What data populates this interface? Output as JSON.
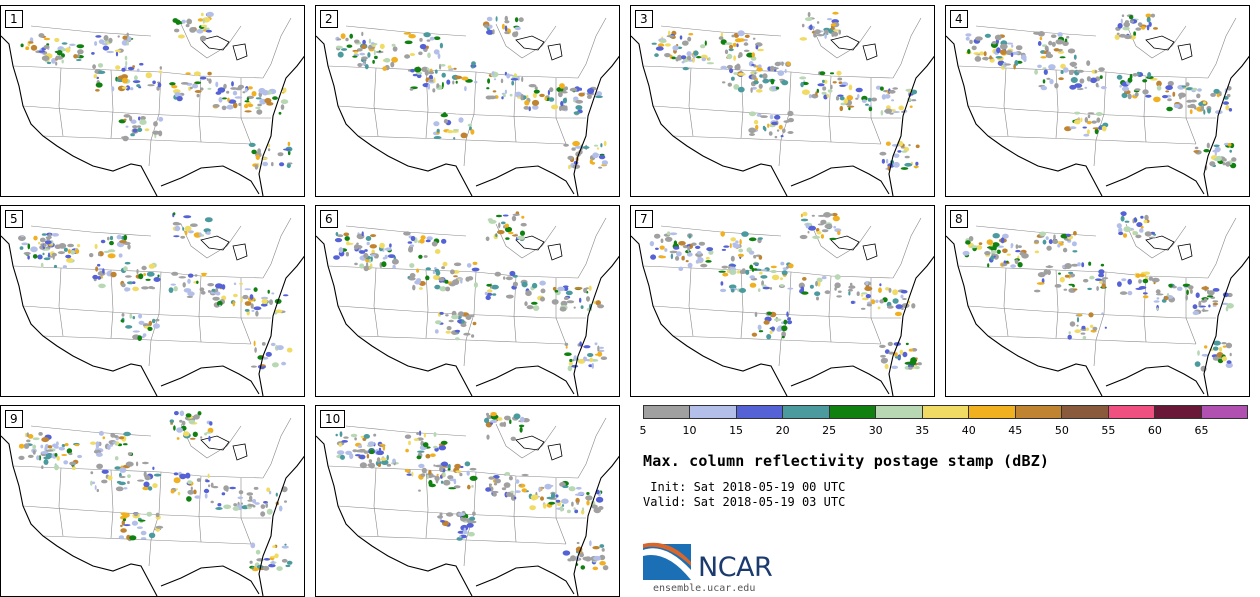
{
  "panels": [
    {
      "number": "1"
    },
    {
      "number": "2"
    },
    {
      "number": "3"
    },
    {
      "number": "4"
    },
    {
      "number": "5"
    },
    {
      "number": "6"
    },
    {
      "number": "7"
    },
    {
      "number": "8"
    },
    {
      "number": "9"
    },
    {
      "number": "10"
    }
  ],
  "colorbar": {
    "colors": [
      "#a0a0a0",
      "#b3bfe8",
      "#5562d6",
      "#4b9a9e",
      "#108010",
      "#b8d8b4",
      "#f0dc64",
      "#f0b020",
      "#c08430",
      "#8a5a3c",
      "#f05080",
      "#6a1838",
      "#b050b0"
    ],
    "ticks": [
      "5",
      "10",
      "15",
      "20",
      "25",
      "30",
      "35",
      "40",
      "45",
      "50",
      "55",
      "60",
      "65"
    ]
  },
  "title": "Max. column reflectivity postage stamp (dBZ)",
  "init": " Init: Sat 2018-05-19 00 UTC",
  "valid": "Valid: Sat 2018-05-19 03 UTC",
  "logo": {
    "text": "NCAR",
    "url": "ensemble.ucar.edu"
  }
}
